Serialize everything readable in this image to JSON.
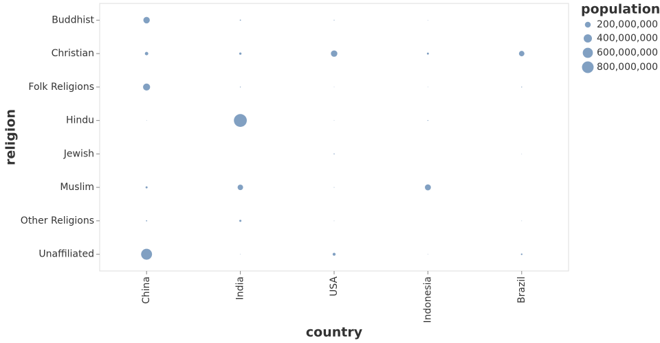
{
  "chart_data": {
    "type": "scatter",
    "x_label": "country",
    "y_label": "religion",
    "size_label": "population",
    "categories": [
      "China",
      "India",
      "USA",
      "Indonesia",
      "Brazil"
    ],
    "color": "#4c78a8",
    "series": [
      {
        "name": "Buddhist",
        "values": [
          244000000,
          9000000,
          3600000,
          1700000,
          null
        ]
      },
      {
        "name": "Christian",
        "values": [
          68000000,
          31000000,
          243000000,
          23000000,
          173000000
        ]
      },
      {
        "name": "Folk Religions",
        "values": [
          294000000,
          5000000,
          600000,
          1000000,
          5000000
        ]
      },
      {
        "name": "Hindu",
        "values": [
          200000,
          974000000,
          1800000,
          4000000,
          null
        ]
      },
      {
        "name": "Jewish",
        "values": [
          null,
          null,
          5700000,
          null,
          100000
        ]
      },
      {
        "name": "Muslim",
        "values": [
          24000000,
          177000000,
          2800000,
          210000000,
          null
        ]
      },
      {
        "name": "Other Religions",
        "values": [
          9000000,
          27000000,
          2000000,
          null,
          2000000
        ]
      },
      {
        "name": "Unaffiliated",
        "values": [
          700000000,
          1000000,
          51000000,
          300000,
          15000000
        ]
      }
    ],
    "size_ticks": [
      {
        "value": 200000000,
        "label": "200,000,000"
      },
      {
        "value": 400000000,
        "label": "400,000,000"
      },
      {
        "value": 600000000,
        "label": "600,000,000"
      },
      {
        "value": 800000000,
        "label": "800,000,000"
      }
    ]
  }
}
